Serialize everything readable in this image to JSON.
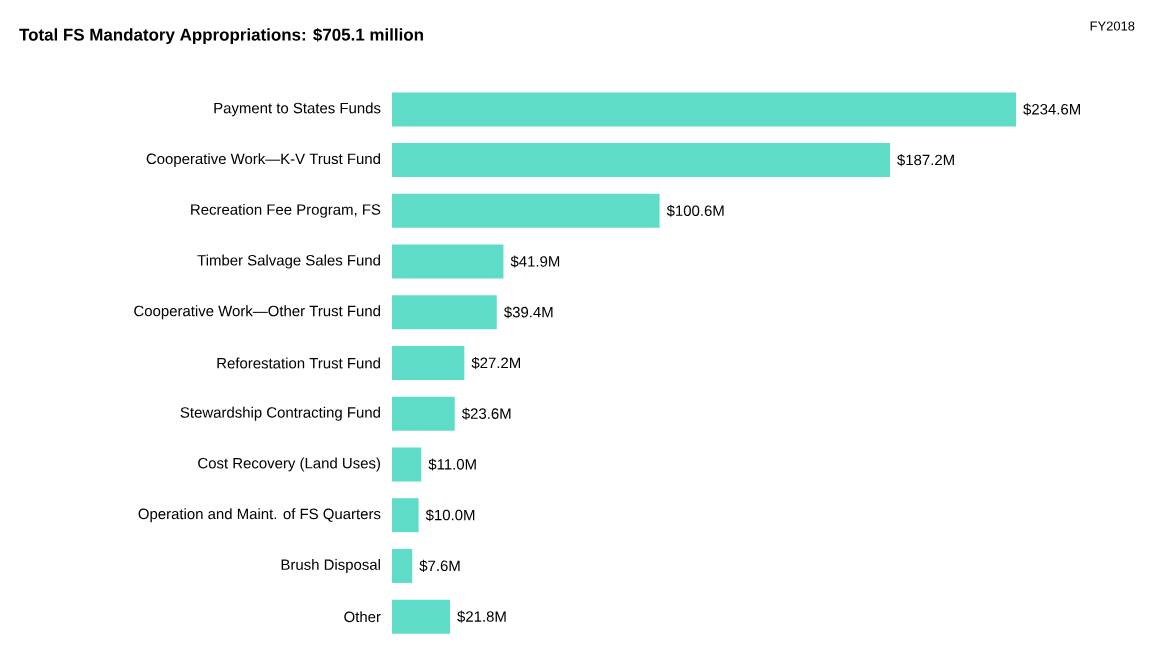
{
  "chart_data": {
    "type": "bar",
    "orientation": "horizontal",
    "title": "**Total FS Mandatory Appropriations: $705.1 million**",
    "annotations": [
      "FY2018"
    ],
    "categories": [
      "Payment to States Funds",
      "Cooperative Work—K-V Trust Fund",
      "Recreation Fee Program, FS",
      "Timber Salvage Sales Fund",
      "Cooperative Work—Other Trust Fund",
      "Reforestation Trust Fund",
      "Stewardship Contracting Fund",
      "Cost Recovery (Land Uses)",
      "Operation and Maint. of FS Quarters",
      "Brush Disposal",
      "Other"
    ],
    "values": [
      234.6,
      187.2,
      100.6,
      41.9,
      39.4,
      27.2,
      23.6,
      11.0,
      10.0,
      7.6,
      21.8
    ],
    "value_labels": [
      "$234.6M",
      "$187.2M",
      "$100.6M",
      "$41.9M",
      "$39.4M",
      "$27.2M",
      "$23.6M",
      "$11.0M",
      "$10.0M",
      "$7.6M",
      "$21.8M"
    ],
    "color": "#5fdcc8"
  }
}
